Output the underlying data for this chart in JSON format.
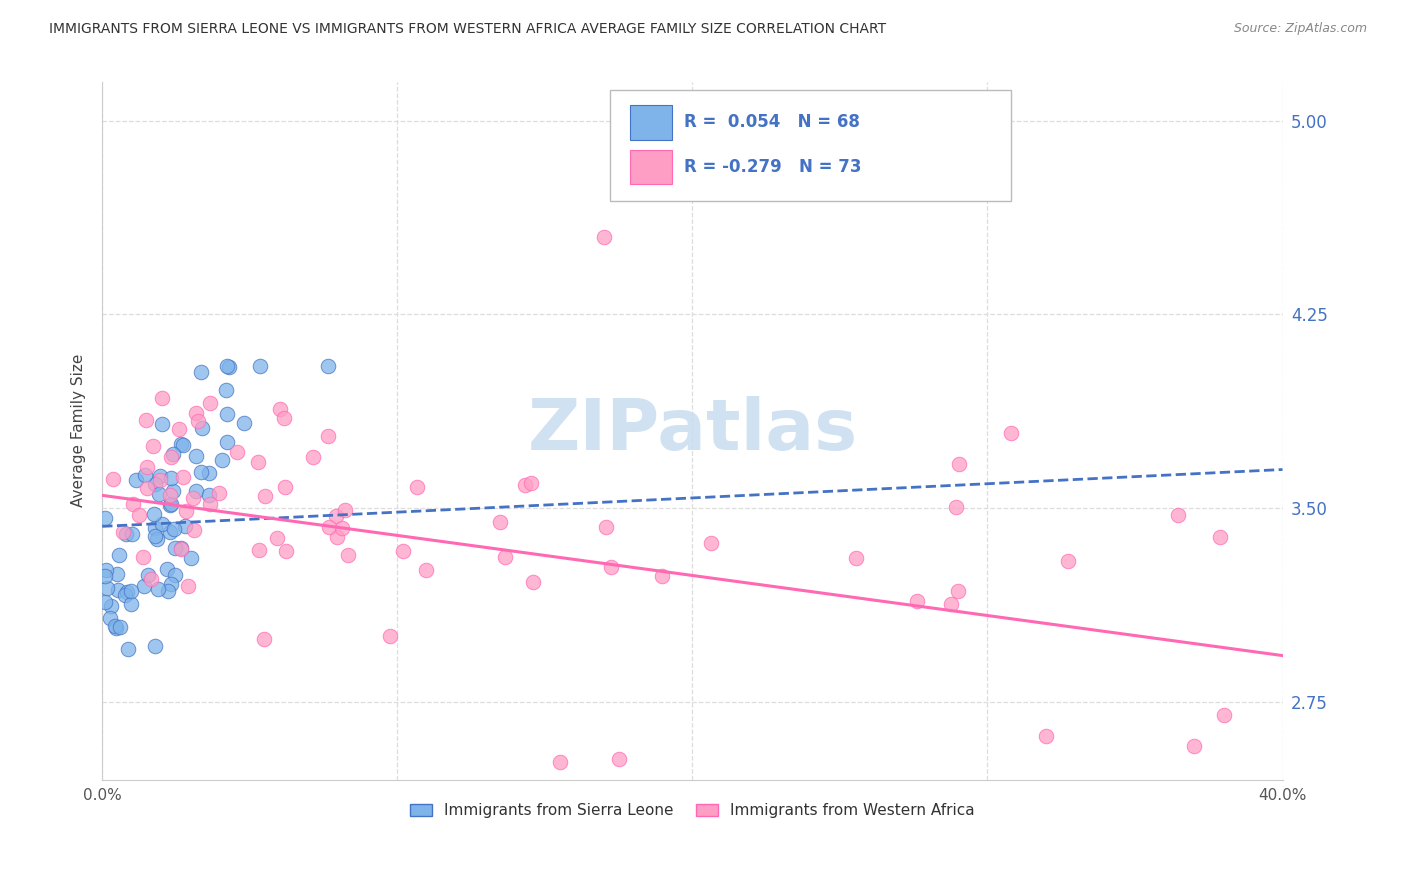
{
  "title": "IMMIGRANTS FROM SIERRA LEONE VS IMMIGRANTS FROM WESTERN AFRICA AVERAGE FAMILY SIZE CORRELATION CHART",
  "source": "Source: ZipAtlas.com",
  "ylabel": "Average Family Size",
  "xlim": [
    0.0,
    0.4
  ],
  "ylim": [
    2.45,
    5.15
  ],
  "yticks": [
    2.75,
    3.5,
    4.25,
    5.0
  ],
  "xticks": [
    0.0,
    0.1,
    0.2,
    0.3,
    0.4
  ],
  "legend_labels": [
    "Immigrants from Sierra Leone",
    "Immigrants from Western Africa"
  ],
  "R_sierra": 0.054,
  "R_western": -0.279,
  "N_sierra": 68,
  "N_western": 73,
  "color_sierra": "#7EB4EA",
  "color_western": "#FF9EC4",
  "color_trendline_sierra": "#4472C4",
  "color_trendline_western": "#FF69B4",
  "background_color": "#FFFFFF",
  "watermark_text": "ZIPatlas",
  "watermark_color": "#C8DDF0"
}
